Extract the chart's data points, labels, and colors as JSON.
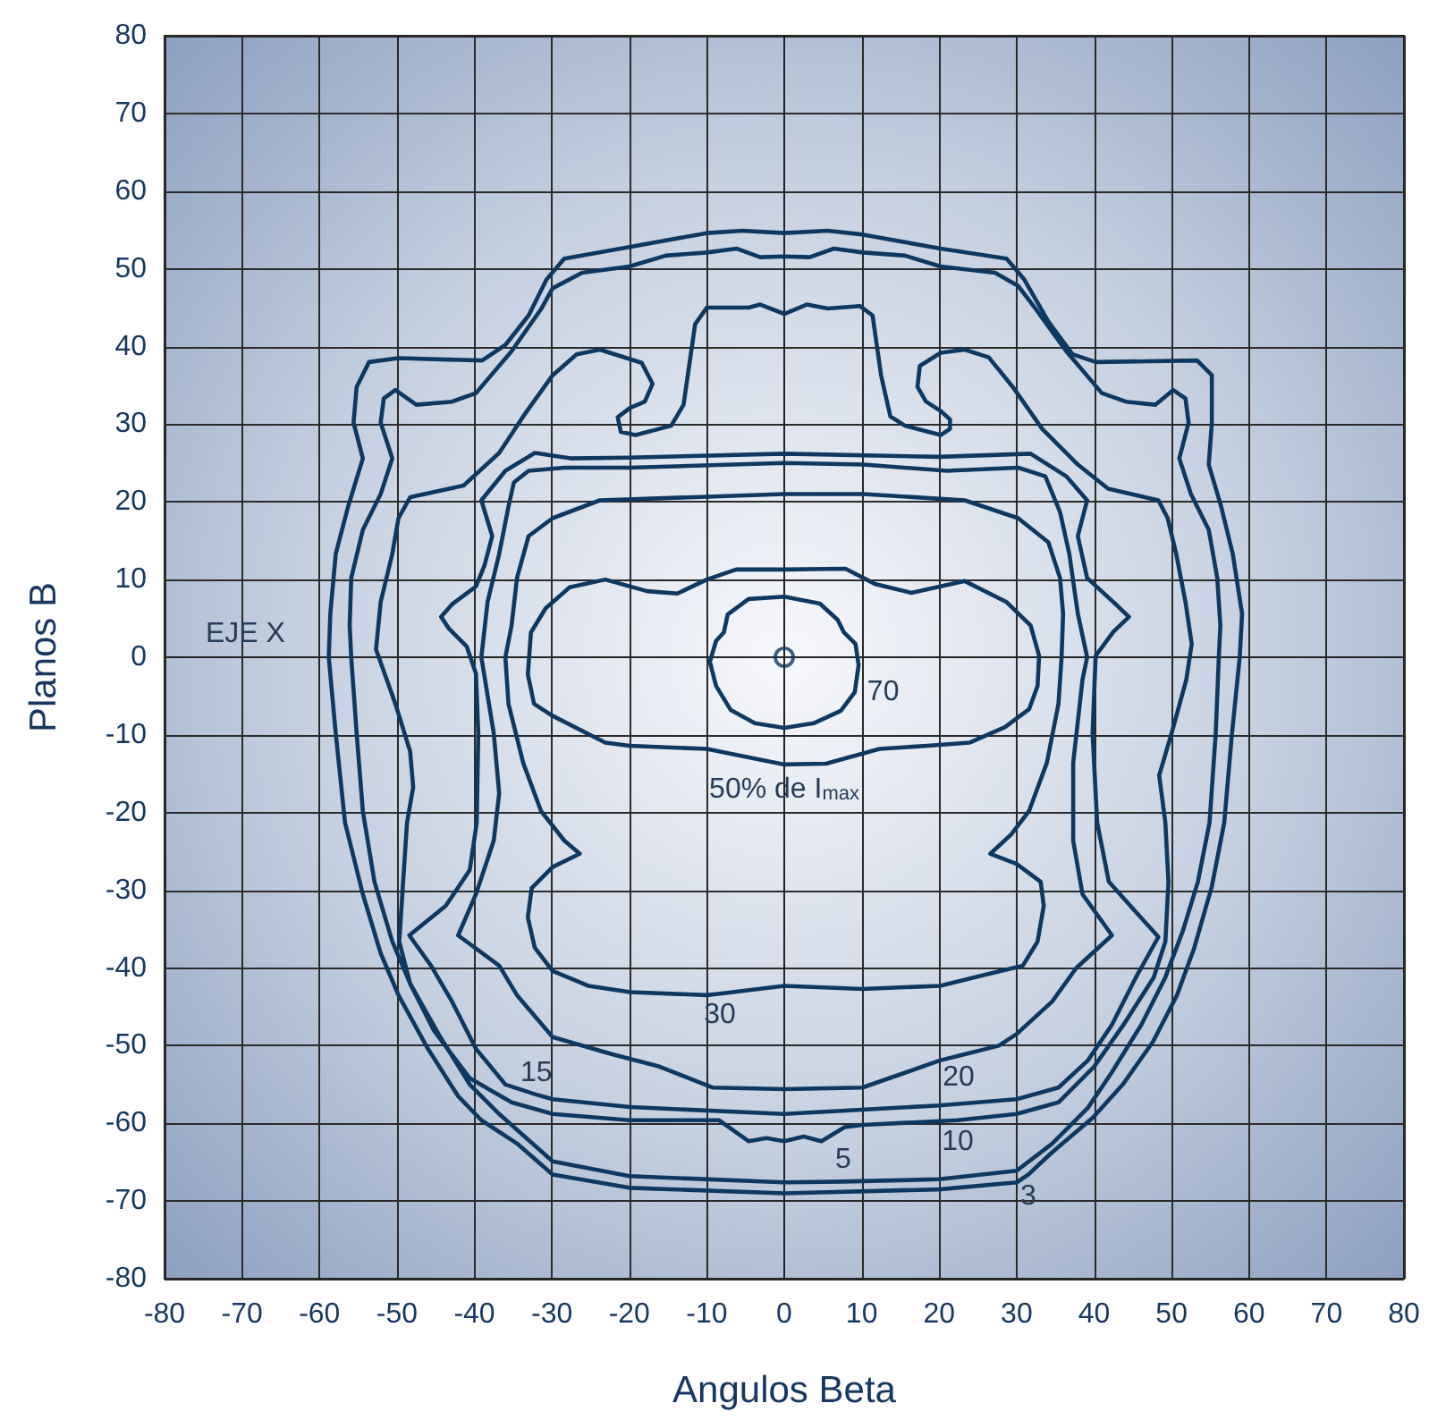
{
  "chart_data": {
    "type": "line",
    "xlabel": "Angulos Beta",
    "ylabel": "Planos B",
    "xlim": [
      -80,
      80
    ],
    "ylim": [
      -80,
      80
    ],
    "xticks": [
      -80,
      -70,
      -60,
      -50,
      -40,
      -30,
      -20,
      -10,
      0,
      10,
      20,
      30,
      40,
      50,
      60,
      70,
      80
    ],
    "yticks": [
      -80,
      -70,
      -60,
      -50,
      -40,
      -30,
      -20,
      -10,
      0,
      10,
      20,
      30,
      40,
      50,
      60,
      70,
      80
    ],
    "grid": true,
    "marker": "none",
    "line_style": "solid",
    "annotations": [
      "EJE X"
    ],
    "series": [
      {
        "name": "3",
        "color": "#0d3862",
        "x": [
          30,
          31.5,
          34.5,
          39.8,
          43.7,
          47.6,
          50.7,
          52.9,
          55.2,
          56.8,
          57.8,
          58.8,
          59.1,
          57.9,
          56.4,
          54.8,
          55.2,
          55.2,
          53.3,
          40.2,
          37.2,
          34.1,
          31,
          28.7,
          20.2,
          10.2,
          5.6,
          0,
          -5.4,
          -10,
          -20,
          -28.4,
          -30.7,
          -33,
          -36,
          -39,
          -49.8,
          -53.6,
          -55.2,
          -55.6,
          -54.4,
          -56.3,
          -57.9,
          -58.6,
          -58.8,
          -57.9,
          -56.7,
          -54.4,
          -52.1,
          -49.8,
          -46,
          -42.1,
          -39.1,
          -34.5,
          -29.9,
          -20,
          0,
          20,
          30,
          31.5
        ],
        "values": [
          -67.6,
          -66.6,
          -63.8,
          -59.3,
          -55,
          -49.5,
          -43.5,
          -37.5,
          -29.5,
          -21.3,
          -9.8,
          0,
          5.6,
          13.3,
          19.4,
          24.8,
          30.2,
          36.3,
          38.2,
          38,
          39,
          43.2,
          48.6,
          51.3,
          52.6,
          54.4,
          54.9,
          54.6,
          54.9,
          54.6,
          52.8,
          51.3,
          48.6,
          44,
          40.2,
          38.2,
          38.5,
          38,
          34.8,
          30.2,
          25.6,
          19.4,
          13.3,
          5.6,
          0,
          -9.8,
          -21.3,
          -30.5,
          -38.1,
          -43.5,
          -50.4,
          -56.5,
          -59.6,
          -62.6,
          -66.6,
          -68.3,
          -69,
          -68.5,
          -67.6,
          -66.6
        ]
      },
      {
        "name": "5",
        "color": "#0d3862",
        "x": [
          0,
          7.6,
          20,
          30,
          34.6,
          39.2,
          42.3,
          46.1,
          49.2,
          51.5,
          53.4,
          54.9,
          55.7,
          56.1,
          56.3,
          55.9,
          54.8,
          52.5,
          51,
          52.2,
          51.8,
          50.2,
          47.9,
          44.1,
          41,
          36.4,
          32.5,
          30.2,
          27.2,
          20.2,
          15.6,
          10.2,
          6.4,
          3.3,
          0,
          -3.1,
          -6.1,
          -10,
          -15.3,
          -20,
          -26.1,
          -29.9,
          -31.4,
          -35.2,
          -39.8,
          -42.9,
          -47.5,
          -50.2,
          -51.7,
          -52.1,
          -50.6,
          -52.1,
          -54.4,
          -55.9,
          -56.1,
          -55.9,
          -55.2,
          -54.4,
          -52.9,
          -50.6,
          -48.3,
          -44.4,
          -40.6,
          -36.8,
          -29.9,
          -20,
          0,
          7.6
        ],
        "values": [
          -67.6,
          -67.5,
          -67.2,
          -66.1,
          -62.6,
          -58,
          -53.4,
          -47.3,
          -41.2,
          -35.1,
          -28.9,
          -21.3,
          -9.8,
          0,
          4.1,
          10.2,
          16.4,
          21,
          25.6,
          30.2,
          33.3,
          34.4,
          32.5,
          32.9,
          34,
          39.4,
          44.8,
          47.8,
          49.5,
          50.3,
          51.7,
          52.1,
          52.6,
          51.5,
          51.6,
          51.5,
          52.6,
          52.1,
          51.7,
          50.3,
          49.5,
          47.5,
          44.8,
          39.4,
          34,
          32.9,
          32.5,
          34.4,
          33.3,
          30.2,
          25.6,
          21,
          16.4,
          10.2,
          4.1,
          0,
          -9.8,
          -19.8,
          -28.9,
          -36.6,
          -42,
          -48.9,
          -55,
          -58.8,
          -64.9,
          -66.8,
          -67.6,
          -67.5
        ]
      },
      {
        "name": "10",
        "color": "#0d3862",
        "x": [
          10.1,
          22.4,
          30,
          35.4,
          40,
          43.8,
          47.7,
          49.2,
          49.6,
          49.2,
          48.4,
          50,
          51.9,
          52.6,
          51.8,
          50.6,
          49.5,
          48.3,
          41.8,
          37.9,
          33.3,
          29.5,
          26.4,
          23.3,
          20.2,
          17.5,
          17.2,
          18.3,
          20.2,
          21.4,
          21.4,
          20.2,
          15.6,
          13.7,
          12.5,
          11.4,
          9.8,
          5.6,
          2.9,
          0,
          -3.1,
          -4.6,
          -10,
          -11.5,
          -13,
          -14.6,
          -19.2,
          -21.1,
          -21.5,
          -19.9,
          -18,
          -17,
          -18.4,
          -23.8,
          -26.8,
          -29.9,
          -33.7,
          -36.8,
          -41.4,
          -48.3,
          -49.8,
          -50.6,
          -52.1,
          -52.7,
          -50.2,
          -48.3,
          -47.9,
          -48.7,
          -49.2,
          -49.7,
          -48.3,
          -45.2,
          -40.6,
          -35.2,
          -29.9,
          -20,
          -8.4,
          -4.6,
          -2.3,
          0,
          2.5,
          4.8,
          7.8,
          10.1,
          22.4
        ],
        "values": [
          -60.2,
          -59.6,
          -58.8,
          -57.3,
          -52.7,
          -47.3,
          -41.2,
          -36.6,
          -28.9,
          -21.3,
          -15.2,
          -9.8,
          -2.9,
          1.7,
          7.1,
          13.3,
          17.9,
          20.2,
          21.7,
          24.8,
          29.4,
          34.8,
          38.6,
          39.6,
          39.2,
          37.5,
          34.8,
          32.9,
          31.7,
          30.6,
          29.4,
          28.6,
          29.8,
          31,
          36.3,
          44,
          45.2,
          44.9,
          45.4,
          44.2,
          45.4,
          45,
          45,
          42.9,
          32.5,
          29.8,
          28.6,
          29,
          30.9,
          32.1,
          32.9,
          35.2,
          37.9,
          39.6,
          39,
          36.3,
          31,
          26.3,
          22.1,
          20.6,
          17.9,
          13.3,
          7.1,
          1,
          -6,
          -12.1,
          -16.7,
          -21.3,
          -28.9,
          -36.6,
          -42,
          -48.1,
          -54.2,
          -57.3,
          -58.8,
          -59.6,
          -59.6,
          -62.3,
          -61.9,
          -62.3,
          -61.7,
          -62.3,
          -60.5,
          -60.2,
          -59.6
        ]
      },
      {
        "name": "15",
        "color": "#0d3862",
        "x": [
          -36,
          -32,
          -29.9,
          -19.9,
          0,
          20,
          30,
          35.4,
          39.2,
          42.3,
          45.4,
          48.3,
          45.4,
          41.9,
          40.4,
          39.8,
          40.2,
          42.5,
          44.5,
          42.5,
          39.1,
          37.9,
          39.1,
          36.4,
          31.8,
          20,
          0,
          -20,
          -27.6,
          -32.2,
          -36,
          -39.1,
          -37.7,
          -38.7,
          -39.8,
          -42.9,
          -44.3,
          -43.3,
          -41,
          -39.8,
          -39.5,
          -39.7,
          -40.6,
          -43.7,
          -48.4,
          -45.6,
          -42.9,
          -39.8,
          -36,
          -32
        ],
        "values": [
          -55,
          -56.3,
          -56.9,
          -57.9,
          -58.8,
          -57.7,
          -56.9,
          -55.4,
          -51.9,
          -47.3,
          -41.2,
          -36,
          -32.8,
          -28.9,
          -21.3,
          -9.8,
          0.2,
          3.3,
          5.2,
          7.1,
          10.2,
          15.6,
          20.2,
          23.3,
          26.2,
          25.8,
          26.2,
          25.7,
          25.6,
          26.3,
          24,
          20.2,
          15.6,
          11.8,
          9.1,
          6.8,
          5.2,
          3.7,
          1.4,
          -2.1,
          -9.8,
          -21.3,
          -27.4,
          -32,
          -35.8,
          -39.7,
          -44.3,
          -50.4,
          -55,
          -56.3
        ]
      },
      {
        "name": "20",
        "color": "#0d3862",
        "x": [
          20.1,
          22.5,
          27.7,
          30,
          34.6,
          37.7,
          42.3,
          38.5,
          37.3,
          37.3,
          38.5,
          39.1,
          37.9,
          36.8,
          35.6,
          33.7,
          30.2,
          21,
          10.2,
          0,
          -20,
          -28.4,
          -33,
          -34.9,
          -35.6,
          -36.8,
          -38.3,
          -39.1,
          -37.5,
          -36.8,
          -37.5,
          -39.8,
          -42.1,
          -36.8,
          -34.5,
          -29.9,
          -22.2,
          -16.1,
          -9.2,
          0,
          10.1,
          20.1,
          22.5
        ],
        "values": [
          -51.9,
          -51.3,
          -50,
          -48.5,
          -44.3,
          -40,
          -35.8,
          -30.5,
          -23.6,
          -13.6,
          -2.9,
          0,
          5.6,
          13.3,
          18.7,
          23.3,
          24.4,
          24,
          24.8,
          25,
          24.4,
          24.4,
          24,
          22.5,
          19.4,
          13.3,
          7.1,
          0,
          -9.8,
          -17.5,
          -23.6,
          -30.5,
          -35.8,
          -39.7,
          -43.5,
          -48.9,
          -51.1,
          -52.7,
          -55.4,
          -55.6,
          -55.4,
          -51.9,
          -51.3
        ]
      },
      {
        "name": "30",
        "color": "#0d3862",
        "x": [
          -10,
          -8.3,
          0,
          10.1,
          20.1,
          26.2,
          30.8,
          32.7,
          33.5,
          33.1,
          30,
          26.6,
          29.3,
          31.6,
          33.9,
          35.4,
          35.8,
          36,
          35.6,
          34.1,
          30.2,
          23.3,
          10.2,
          0,
          -23.8,
          -29.9,
          -33,
          -34.5,
          -35.2,
          -36,
          -35.6,
          -33.7,
          -31.4,
          -28.4,
          -26.4,
          -29.9,
          -32.6,
          -33.1,
          -32.2,
          -29.9,
          -25.3,
          -19.9,
          -10,
          -8.3
        ],
        "values": [
          -43.5,
          -43.3,
          -42.3,
          -42.7,
          -42.3,
          -40.8,
          -39.7,
          -36.6,
          -32,
          -28.9,
          -26.6,
          -25.3,
          -22.8,
          -19.8,
          -13.6,
          -6,
          0,
          5.6,
          10.2,
          14.8,
          17.9,
          20.2,
          21,
          21,
          20.2,
          17.9,
          15.6,
          10.2,
          4.1,
          0,
          -6,
          -13.6,
          -19.8,
          -23.6,
          -25.3,
          -27,
          -29.7,
          -33.5,
          -37.4,
          -40.4,
          -42.3,
          -43.1,
          -43.5,
          -43.3
        ]
      },
      {
        "name": "50% de I$_{max}$",
        "color": "#0d3862",
        "x": [
          -10,
          0,
          5.4,
          12.3,
          18.5,
          23.9,
          28.5,
          31.6,
          32.7,
          32.9,
          31.8,
          28.7,
          23.3,
          16.4,
          11.8,
          7.9,
          0,
          -6.2,
          -10,
          -13.8,
          -17.7,
          -23.1,
          -27.7,
          -30.8,
          -32.7,
          -33.1,
          -32.3,
          -30,
          -23.1,
          -20,
          -10,
          0
        ],
        "values": [
          -11.8,
          -13.8,
          -13.7,
          -11.8,
          -11.4,
          -11,
          -9,
          -6.7,
          -3.7,
          0.2,
          4.1,
          7.1,
          9.8,
          8.3,
          9.4,
          11.4,
          11.3,
          11.3,
          10,
          8.2,
          8.5,
          10,
          9,
          6.3,
          3.2,
          -2.2,
          -6,
          -7.5,
          -11,
          -11.4,
          -11.8,
          -13.8
        ]
      },
      {
        "name": "70",
        "color": "#0d3862",
        "x": [
          7.3,
          9.1,
          9.6,
          9.2,
          7.7,
          6.9,
          4.6,
          0,
          -4.6,
          -7.3,
          -7.8,
          -8.8,
          -9.6,
          -8.8,
          -6.9,
          -3.8,
          0,
          3.8,
          7.3,
          9.1
        ],
        "values": [
          -6.9,
          -4.5,
          -1,
          1.7,
          3.2,
          4.8,
          6.9,
          7.8,
          7.5,
          5.5,
          3.2,
          2.1,
          -0.6,
          -3.7,
          -6.8,
          -8.5,
          -9.1,
          -8.5,
          -6.9,
          -4.5
        ]
      },
      {
        "type": "scatter",
        "marker": "circle",
        "color": "#0d3862",
        "x": [
          0
        ],
        "values": [
          0
        ]
      }
    ]
  }
}
